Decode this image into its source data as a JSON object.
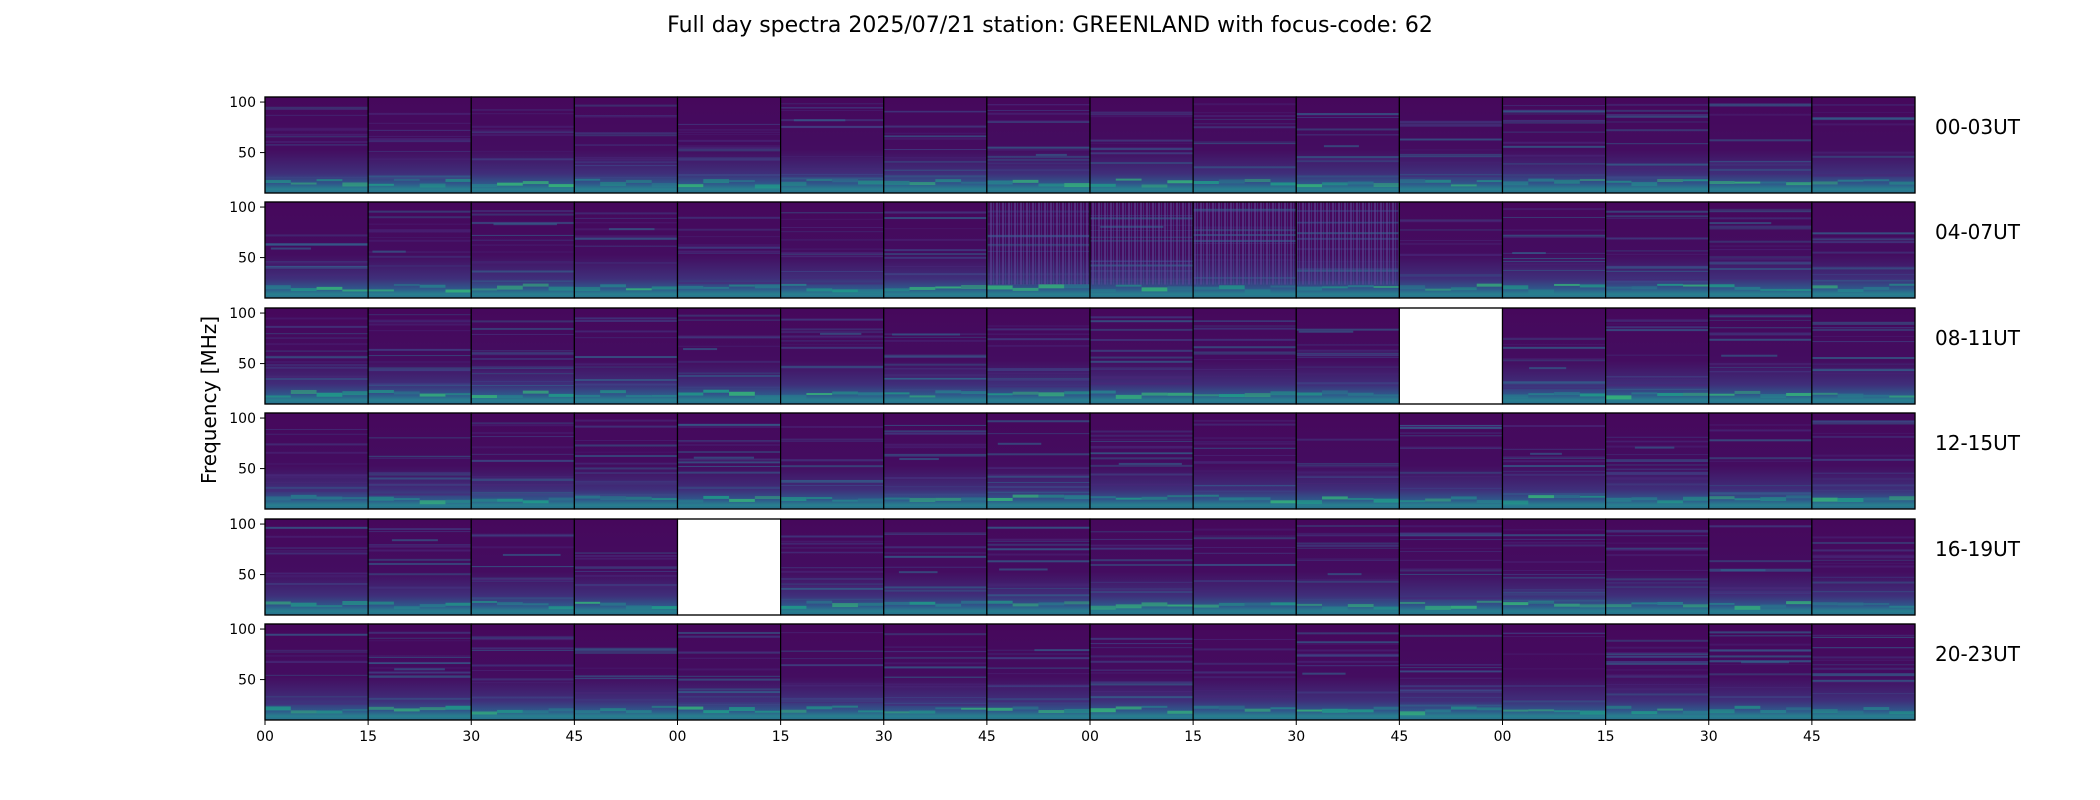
{
  "chart_data": {
    "type": "heatmap",
    "title": "Full day spectra 2025/07/21 station: GREENLAND with focus-code: 62",
    "ylabel": "Frequency [MHz]",
    "xlabel": "",
    "yticks": [
      "100",
      "50"
    ],
    "ylim": [
      10,
      105
    ],
    "xticks": [
      "00",
      "15",
      "30",
      "45",
      "00",
      "15",
      "30",
      "45",
      "00",
      "15",
      "30",
      "45",
      "00",
      "15",
      "30",
      "45"
    ],
    "panels_per_row": 16,
    "colormap": [
      "#440154",
      "#482878",
      "#3e4989",
      "#31688e",
      "#26828e",
      "#1f9e89",
      "#35b779",
      "#6ece58",
      "#b5de2b",
      "#fde725"
    ],
    "rows": [
      {
        "label": "00-03UT",
        "missing_panels": []
      },
      {
        "label": "04-07UT",
        "missing_panels": [],
        "rfi_panels": [
          7,
          8,
          9,
          10
        ]
      },
      {
        "label": "08-11UT",
        "missing_panels": [
          11
        ]
      },
      {
        "label": "12-15UT",
        "missing_panels": []
      },
      {
        "label": "16-19UT",
        "missing_panels": [
          4
        ]
      },
      {
        "label": "20-23UT",
        "missing_panels": []
      }
    ]
  }
}
